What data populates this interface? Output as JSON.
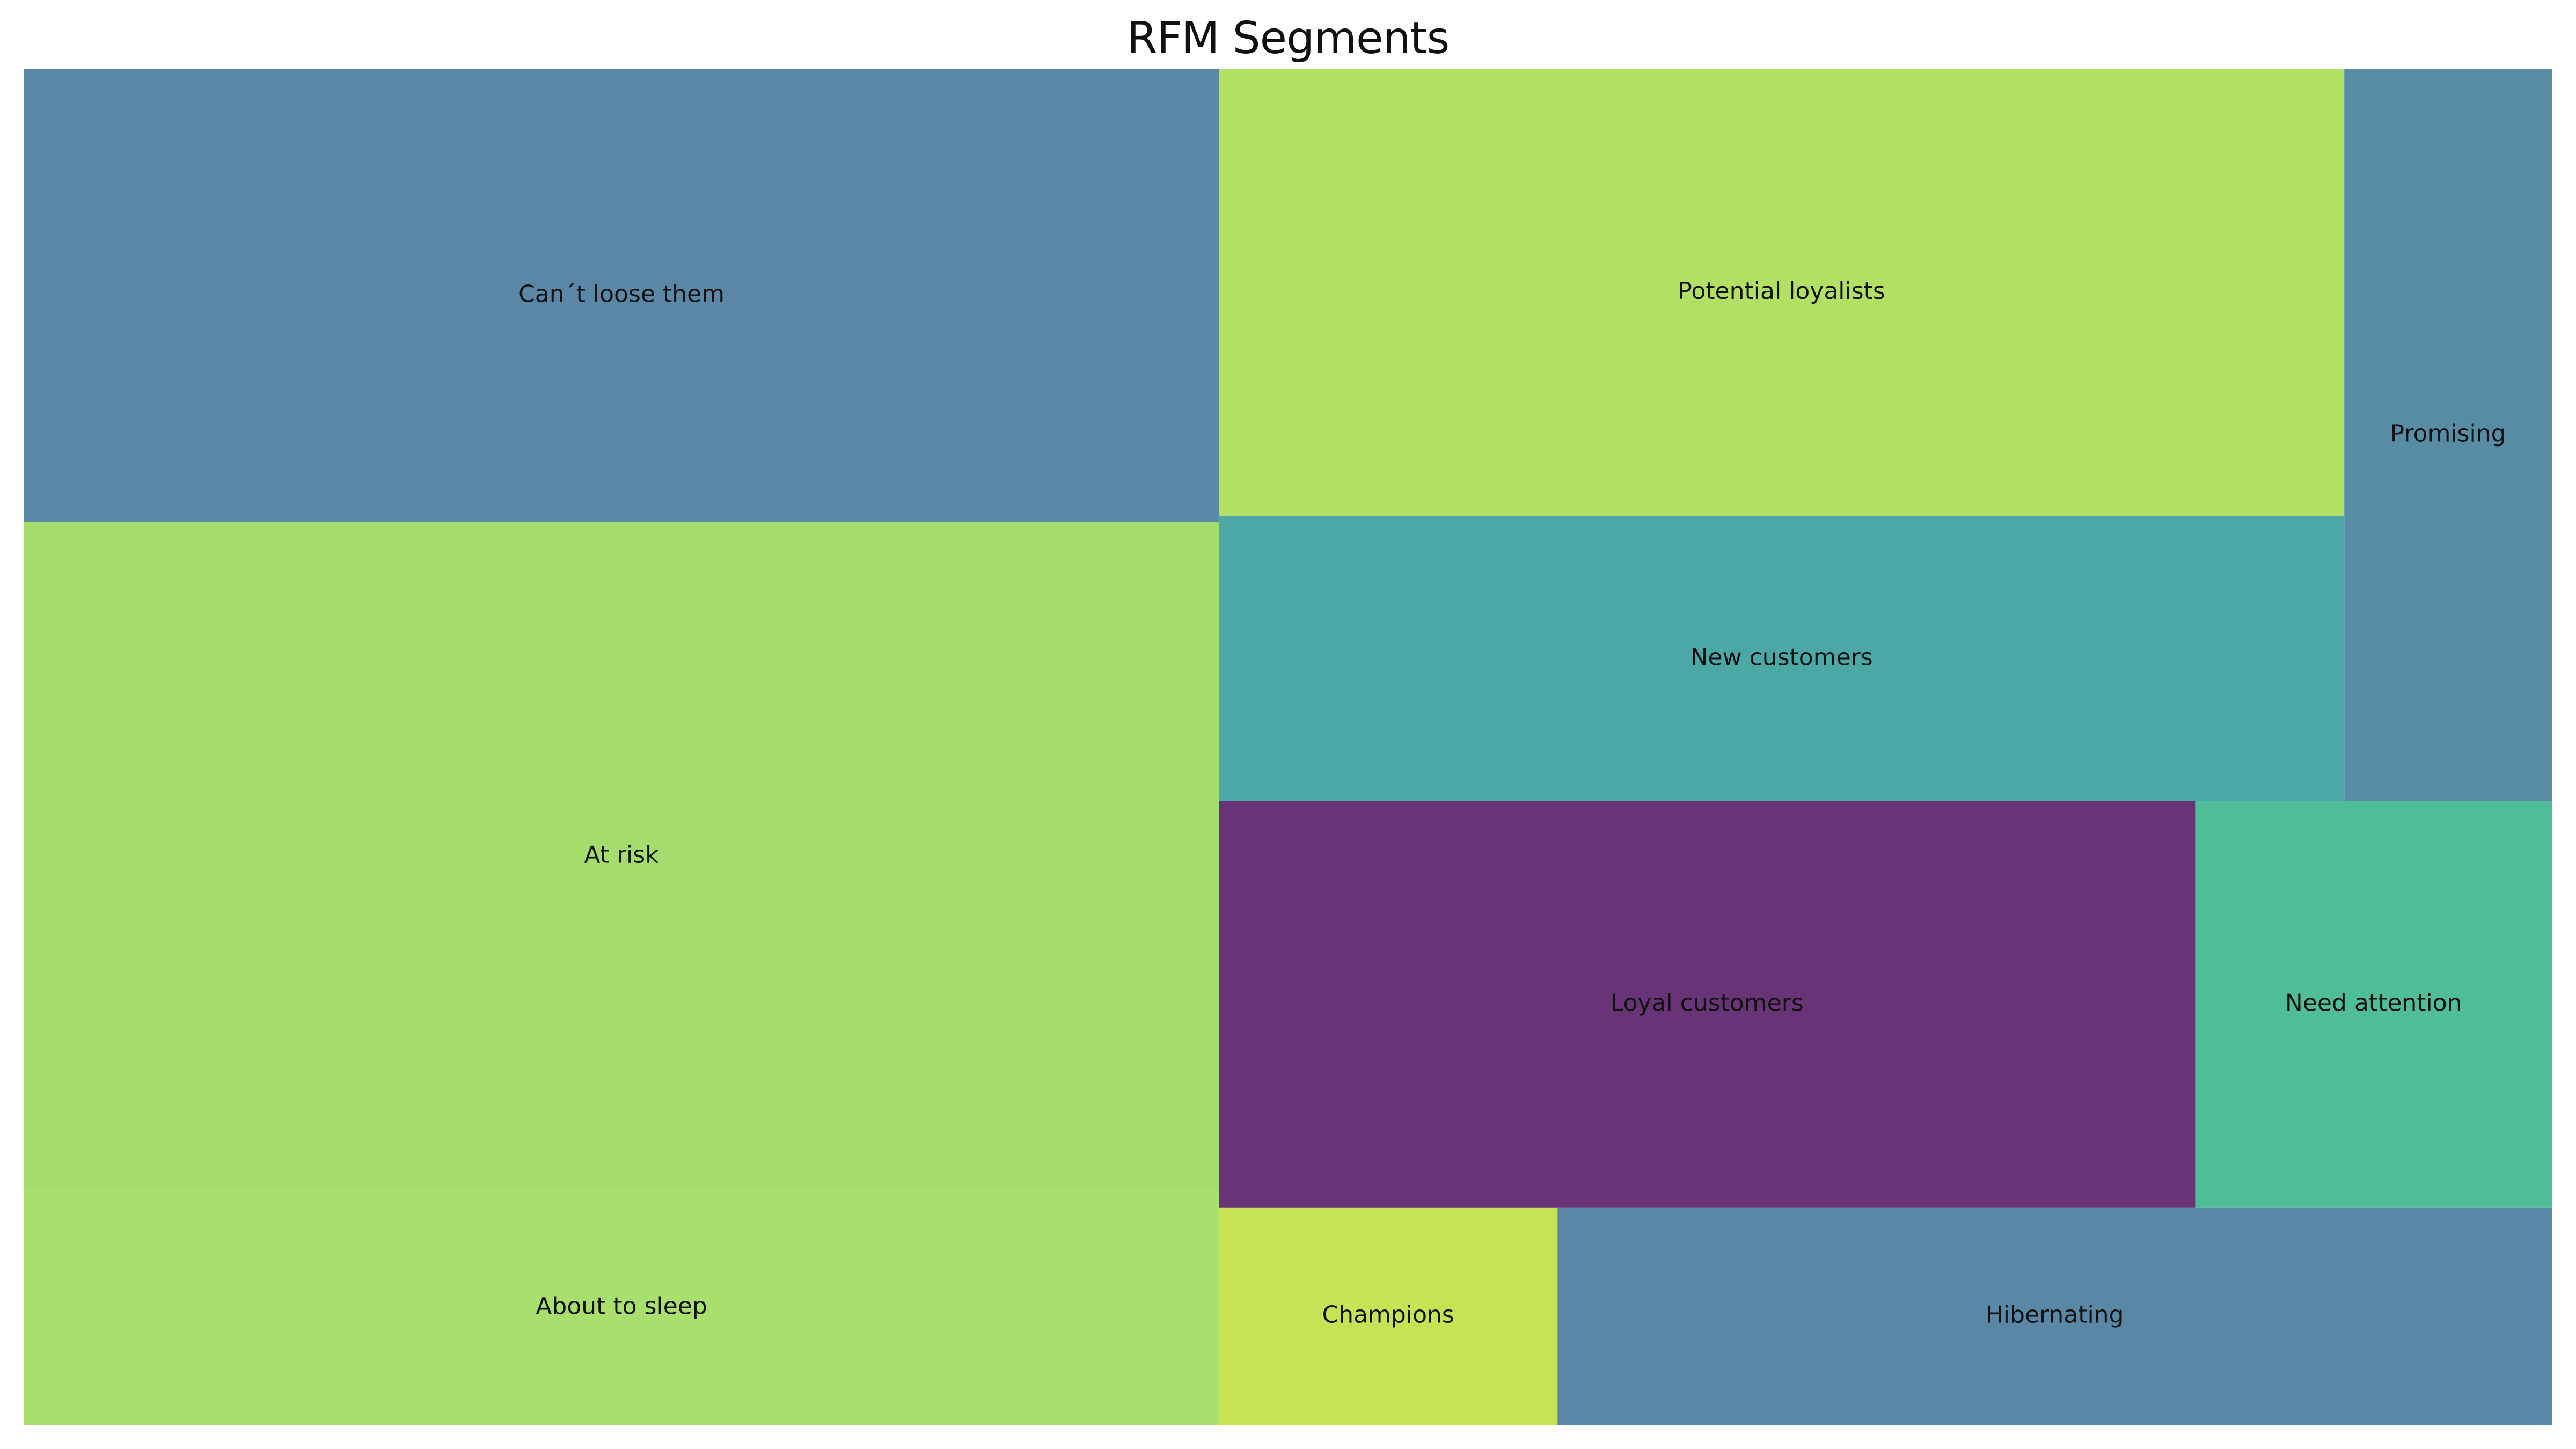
{
  "chart_data": {
    "type": "treemap",
    "title": "RFM Segments",
    "columns": [
      {
        "segments": [
          {
            "label": "Can´t loose them",
            "value": 22.8,
            "color": "#5b87a6"
          },
          {
            "label": "At risk",
            "value": 33.6,
            "color": "#a4dd6b"
          },
          {
            "label": "About to sleep",
            "value": 11.8,
            "color": "#a8df6d"
          }
        ]
      },
      {
        "rows": [
          {
            "segments": [
              {
                "label": "Potential loyalists",
                "value": 21.2,
                "color": "#b2e064"
              },
              {
                "label": "New customers",
                "value": 13.5,
                "color": "#4ca8a6"
              },
              {
                "label": "Promising",
                "value": 6.4,
                "color": "#588ca4"
              }
            ],
            "layout": "group"
          },
          {
            "segments": [
              {
                "label": "Loyal customers",
                "value": 16.7,
                "color": "#683477"
              },
              {
                "label": "Need attention",
                "value": 6.1,
                "color": "#4fbe98"
              }
            ]
          },
          {
            "segments": [
              {
                "label": "Champions",
                "value": 3.1,
                "color": "#c6e356"
              },
              {
                "label": "Hibernating",
                "value": 9.1,
                "color": "#5a87a6"
              }
            ]
          }
        ]
      }
    ]
  }
}
